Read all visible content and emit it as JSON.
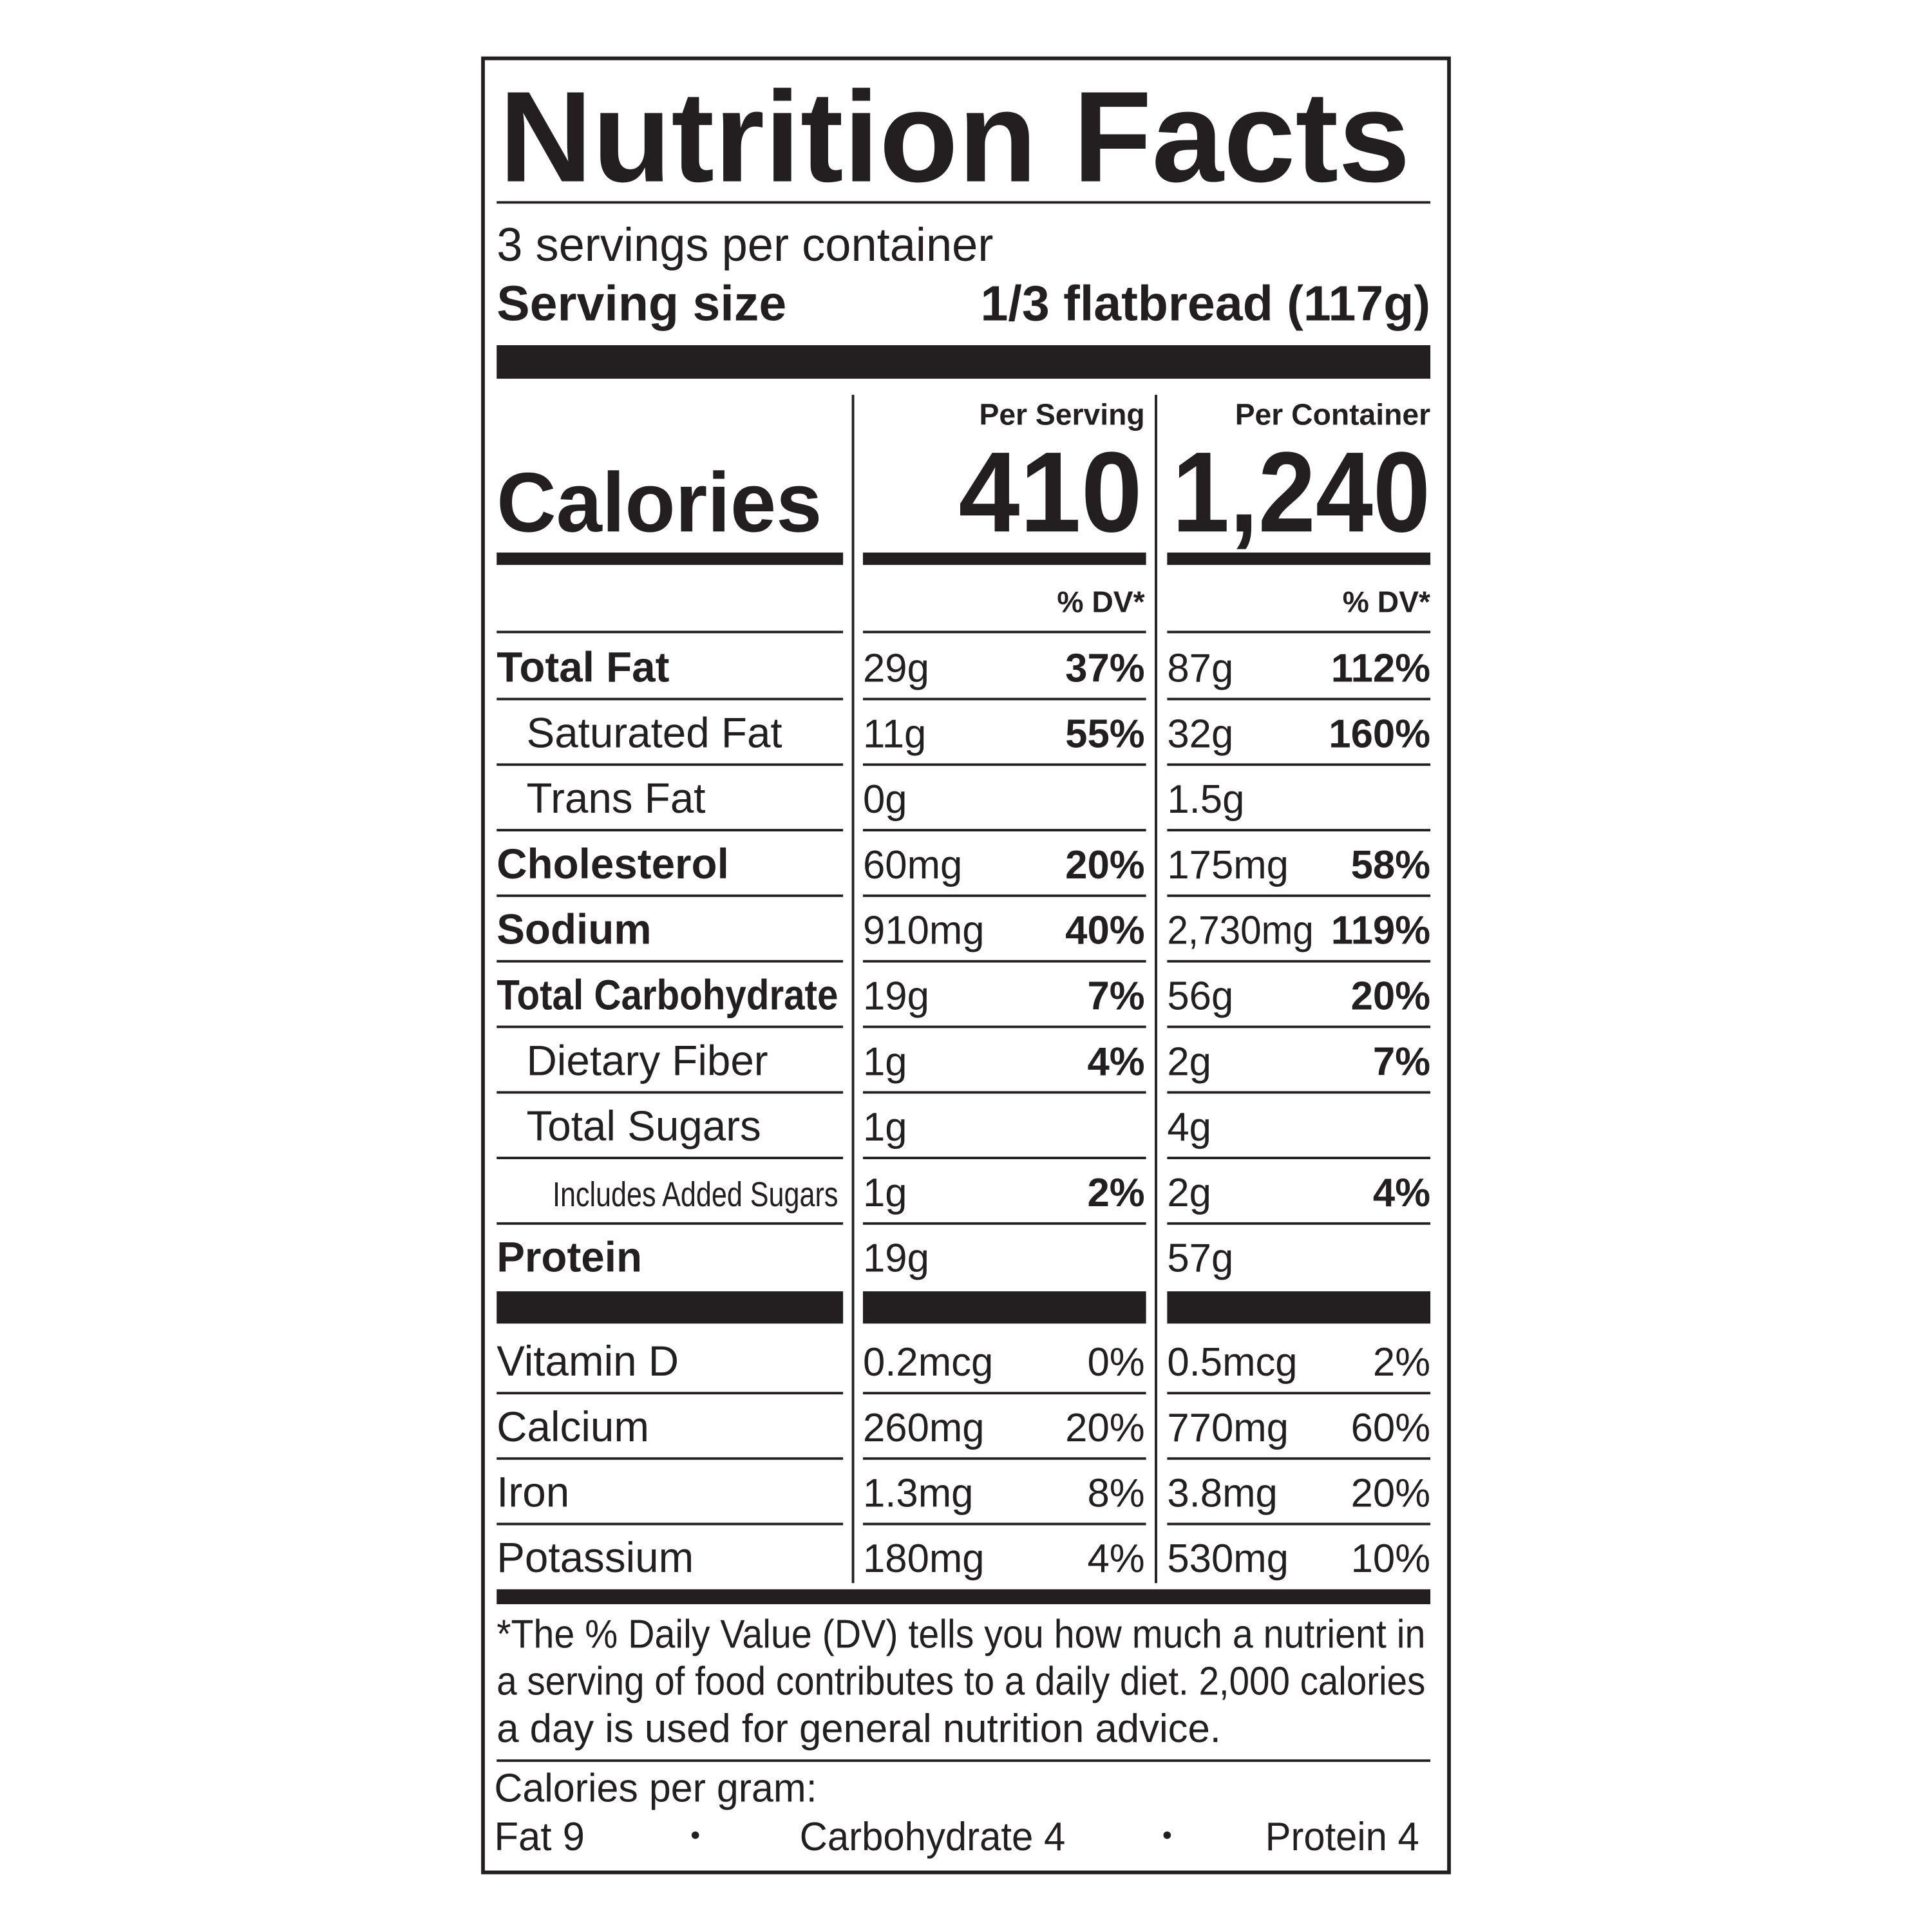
{
  "title": "Nutrition Facts",
  "servings": "3 servings per container",
  "serving_size": {
    "label": "Serving size",
    "value": "1/3 flatbread (117g)"
  },
  "calories": {
    "label": "Calories",
    "per_serving_header": "Per Serving",
    "per_container_header": "Per Container",
    "per_serving": "410",
    "per_container": "1,240"
  },
  "dv_header": "% DV*",
  "nutrients": [
    {
      "name": "Total Fat",
      "bold": true,
      "indent": 0,
      "serving_amount": "29g",
      "serving_dv": "37%",
      "container_amount": "87g",
      "container_dv": "112%"
    },
    {
      "name": "Saturated Fat",
      "bold": false,
      "indent": 1,
      "serving_amount": "11g",
      "serving_dv": "55%",
      "container_amount": "32g",
      "container_dv": "160%"
    },
    {
      "name": "Trans Fat",
      "bold": false,
      "indent": 1,
      "serving_amount": "0g",
      "container_amount": "1.5g"
    },
    {
      "name": "Cholesterol",
      "bold": true,
      "indent": 0,
      "serving_amount": "60mg",
      "serving_dv": "20%",
      "container_amount": "175mg",
      "container_dv": "58%"
    },
    {
      "name": "Sodium",
      "bold": true,
      "indent": 0,
      "serving_amount": "910mg",
      "serving_dv": "40%",
      "container_amount": "2,730mg",
      "container_dv": "119%"
    },
    {
      "name": "Total Carbohydrate",
      "bold": true,
      "indent": 0,
      "serving_amount": "19g",
      "serving_dv": "7%",
      "container_amount": "56g",
      "container_dv": "20%"
    },
    {
      "name": "Dietary Fiber",
      "bold": false,
      "indent": 1,
      "serving_amount": "1g",
      "serving_dv": "4%",
      "container_amount": "2g",
      "container_dv": "7%"
    },
    {
      "name": "Total Sugars",
      "bold": false,
      "indent": 1,
      "serving_amount": "1g",
      "container_amount": "4g"
    },
    {
      "name": "Includes Added Sugars",
      "bold": false,
      "indent": 2,
      "serving_amount": "1g",
      "serving_dv": "2%",
      "container_amount": "2g",
      "container_dv": "4%"
    },
    {
      "name": "Protein",
      "bold": true,
      "indent": 0,
      "serving_amount": "19g",
      "container_amount": "57g"
    }
  ],
  "vitamins": [
    {
      "name": "Vitamin D",
      "serving_amount": "0.2mcg",
      "serving_dv": "0%",
      "container_amount": "0.5mcg",
      "container_dv": "2%"
    },
    {
      "name": "Calcium",
      "serving_amount": "260mg",
      "serving_dv": "20%",
      "container_amount": "770mg",
      "container_dv": "60%"
    },
    {
      "name": "Iron",
      "serving_amount": "1.3mg",
      "serving_dv": "8%",
      "container_amount": "3.8mg",
      "container_dv": "20%"
    },
    {
      "name": "Potassium",
      "serving_amount": "180mg",
      "serving_dv": "4%",
      "container_amount": "530mg",
      "container_dv": "10%"
    }
  ],
  "footnote": [
    "*The % Daily Value (DV) tells you how much a nutrient in",
    "a serving of food contributes to a daily diet. 2,000 calories",
    "a day is used for general nutrition advice."
  ],
  "calories_per_gram": {
    "label": "Calories per gram:",
    "fat": "Fat 9",
    "carbohydrate": "Carbohydrate 4",
    "protein": "Protein 4"
  }
}
